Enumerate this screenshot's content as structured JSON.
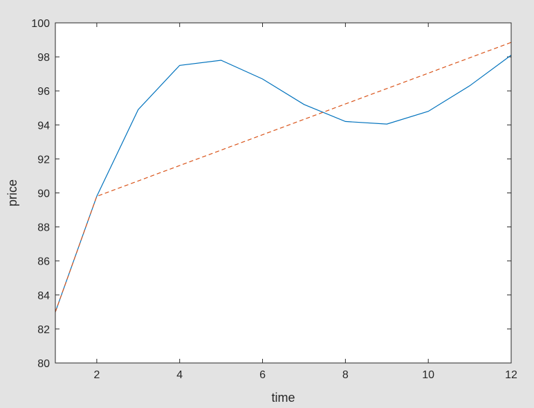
{
  "chart_data": {
    "type": "line",
    "xlabel": "time",
    "ylabel": "price",
    "xlim": [
      1,
      12
    ],
    "ylim": [
      80,
      100
    ],
    "x_ticks": [
      2,
      4,
      6,
      8,
      10,
      12
    ],
    "y_ticks": [
      80,
      82,
      84,
      86,
      88,
      90,
      92,
      94,
      96,
      98,
      100
    ],
    "grid": false,
    "box": true,
    "series": [
      {
        "style": "solid",
        "color": "#0072bd",
        "x": [
          1,
          2,
          3,
          4,
          5,
          6,
          7,
          8,
          9,
          10,
          11,
          12
        ],
        "values": [
          83.0,
          89.8,
          94.9,
          97.5,
          97.8,
          96.7,
          95.2,
          94.2,
          94.05,
          94.8,
          96.3,
          98.1
        ]
      },
      {
        "style": "dashed",
        "color": "#d95319",
        "x": [
          1,
          2,
          12
        ],
        "values": [
          83.0,
          89.8,
          98.85
        ]
      }
    ]
  },
  "colors": {
    "background": "#e3e3e3",
    "plot_area": "#ffffff",
    "axis": "#262626"
  }
}
